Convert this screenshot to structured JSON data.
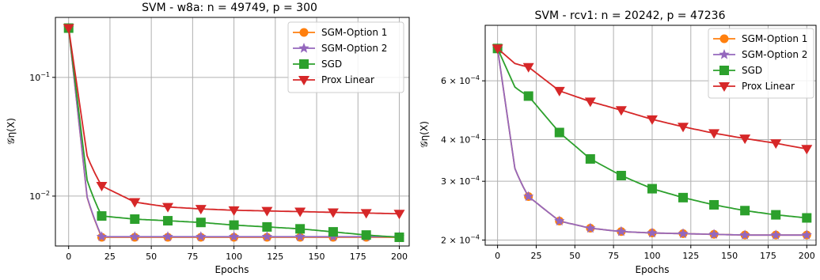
{
  "chart_data": [
    {
      "type": "line",
      "title": "SVM - w8a: n = 49749, p = 300",
      "xlabel": "Epochs",
      "ylabel": "𝒢η(X)",
      "yscale": "log",
      "xlim": [
        -8,
        206
      ],
      "ylim": [
        0.0038,
        0.32
      ],
      "xticks": [
        0,
        25,
        50,
        75,
        100,
        125,
        150,
        175,
        200
      ],
      "yticks": [
        {
          "value": 0.1,
          "base": "10",
          "exp": "−1"
        },
        {
          "value": 0.01,
          "base": "10",
          "exp": "−2"
        }
      ],
      "grid": true,
      "legend_position": "upper right",
      "series": [
        {
          "name": "SGM-Option 1",
          "color": "#ff7f0e",
          "marker": "circle",
          "x": [
            0,
            20,
            40,
            60,
            80,
            100,
            120,
            140,
            160,
            180,
            200
          ],
          "y": [
            0.26,
            0.0045,
            0.0045,
            0.0045,
            0.0045,
            0.0045,
            0.0045,
            0.0045,
            0.0045,
            0.0045,
            0.0045
          ]
        },
        {
          "name": "SGM-Option 2",
          "color": "#9467bd",
          "marker": "star",
          "x": [
            0,
            20,
            40,
            60,
            80,
            100,
            120,
            140,
            160,
            180,
            200
          ],
          "y": [
            0.26,
            0.00455,
            0.00455,
            0.00455,
            0.00455,
            0.00455,
            0.00455,
            0.00455,
            0.00455,
            0.00455,
            0.00455
          ]
        },
        {
          "name": "SGD",
          "color": "#2ca02c",
          "marker": "square",
          "x": [
            0,
            20,
            40,
            60,
            80,
            100,
            120,
            140,
            160,
            180,
            200
          ],
          "y": [
            0.26,
            0.0068,
            0.0064,
            0.0062,
            0.006,
            0.0057,
            0.0055,
            0.0053,
            0.005,
            0.0047,
            0.0045
          ]
        },
        {
          "name": "Prox Linear",
          "color": "#d62728",
          "marker": "triangle-down",
          "x": [
            0,
            20,
            40,
            60,
            80,
            100,
            120,
            140,
            160,
            180,
            200
          ],
          "y": [
            0.26,
            0.0122,
            0.0089,
            0.0081,
            0.0078,
            0.0076,
            0.0075,
            0.0074,
            0.0073,
            0.0072,
            0.0071
          ]
        }
      ]
    },
    {
      "type": "line",
      "title": "SVM - rcv1: n = 20242, p = 47236",
      "xlabel": "Epochs",
      "ylabel": "𝒢η(X)",
      "yscale": "log",
      "xlim": [
        -8,
        206
      ],
      "ylim": [
        0.000193,
        0.00088
      ],
      "xticks": [
        0,
        25,
        50,
        75,
        100,
        125,
        150,
        175,
        200
      ],
      "yticks": [
        {
          "value": 0.0006,
          "base": "6 × 10",
          "exp": "−4"
        },
        {
          "value": 0.0004,
          "base": "4 × 10",
          "exp": "−4"
        },
        {
          "value": 0.0003,
          "base": "3 × 10",
          "exp": "−4"
        },
        {
          "value": 0.0002,
          "base": "2 × 10",
          "exp": "−4"
        }
      ],
      "grid": true,
      "legend_position": "upper right",
      "series": [
        {
          "name": "SGM-Option 1",
          "color": "#ff7f0e",
          "marker": "circle",
          "x": [
            0,
            20,
            40,
            60,
            80,
            100,
            120,
            140,
            160,
            180,
            200
          ],
          "y": [
            0.00075,
            0.00027,
            0.000228,
            0.000217,
            0.000212,
            0.00021,
            0.000209,
            0.000208,
            0.000207,
            0.000207,
            0.000207
          ]
        },
        {
          "name": "SGM-Option 2",
          "color": "#9467bd",
          "marker": "star",
          "x": [
            0,
            20,
            40,
            60,
            80,
            100,
            120,
            140,
            160,
            180,
            200
          ],
          "y": [
            0.00075,
            0.00027,
            0.000228,
            0.000217,
            0.000212,
            0.00021,
            0.000209,
            0.000208,
            0.000207,
            0.000207,
            0.000207
          ]
        },
        {
          "name": "SGD",
          "color": "#2ca02c",
          "marker": "square",
          "x": [
            0,
            20,
            40,
            60,
            80,
            100,
            120,
            140,
            160,
            180,
            200
          ],
          "y": [
            0.00075,
            0.00054,
            0.00042,
            0.00035,
            0.000312,
            0.000285,
            0.000268,
            0.000255,
            0.000245,
            0.000238,
            0.000233
          ]
        },
        {
          "name": "Prox Linear",
          "color": "#d62728",
          "marker": "triangle-down",
          "x": [
            0,
            20,
            40,
            60,
            80,
            100,
            120,
            140,
            160,
            180,
            200
          ],
          "y": [
            0.00075,
            0.00066,
            0.00056,
            0.00052,
            0.00049,
            0.00046,
            0.000437,
            0.000418,
            0.000403,
            0.00039,
            0.000375
          ]
        }
      ]
    }
  ]
}
